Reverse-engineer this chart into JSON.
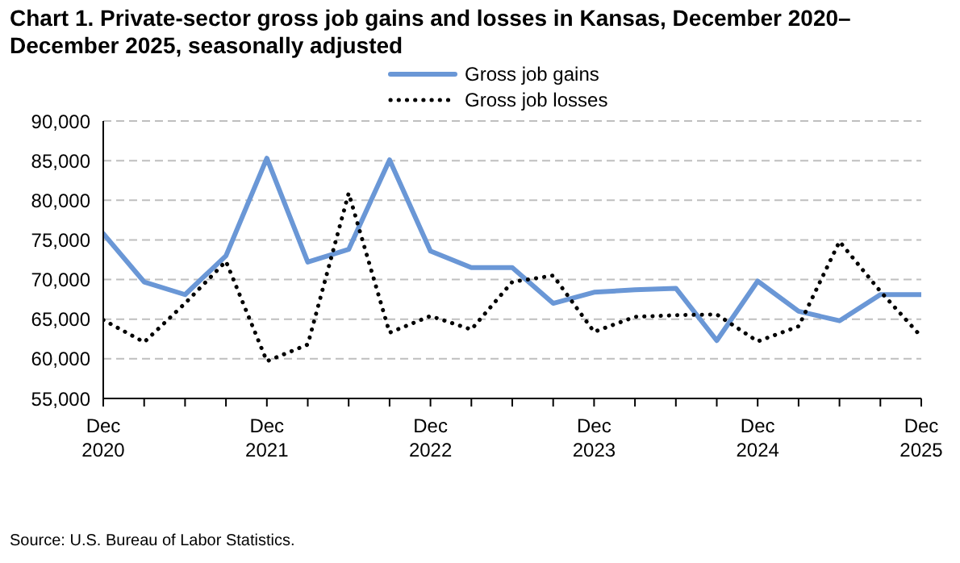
{
  "chart_data": {
    "type": "line",
    "title": "Chart 1. Private-sector gross job gains and losses in Kansas, December 2020–December 2025, seasonally adjusted",
    "categories": [
      "Dec\n2020",
      null,
      null,
      null,
      "Dec\n2021",
      null,
      null,
      null,
      "Dec\n2022",
      null,
      null,
      null,
      "Dec\n2023",
      null,
      null,
      null,
      "Dec\n2024",
      null,
      null,
      null,
      "Dec\n2025"
    ],
    "series": [
      {
        "name": "Gross job gains",
        "color": "#6a97d6",
        "line_style": "solid",
        "values": [
          75800,
          69700,
          68100,
          73000,
          85300,
          72200,
          73800,
          85100,
          73600,
          71500,
          71500,
          67000,
          68400,
          68700,
          68900,
          62300,
          69800,
          66000,
          64800,
          68100,
          68100
        ]
      },
      {
        "name": "Gross job losses",
        "color": "#000000",
        "line_style": "dotted",
        "values": [
          64900,
          62100,
          67000,
          72300,
          59700,
          61800,
          80900,
          63300,
          65400,
          63700,
          69700,
          70500,
          63400,
          65300,
          65500,
          65600,
          62200,
          64100,
          74800,
          68500,
          62800
        ]
      }
    ],
    "ylim": [
      55000,
      90000
    ],
    "yticks": [
      {
        "value": 55000,
        "label": "55,000"
      },
      {
        "value": 60000,
        "label": "60,000"
      },
      {
        "value": 65000,
        "label": "65,000"
      },
      {
        "value": 70000,
        "label": "70,000"
      },
      {
        "value": 75000,
        "label": "75,000"
      },
      {
        "value": 80000,
        "label": "80,000"
      },
      {
        "value": 85000,
        "label": "85,000"
      },
      {
        "value": 90000,
        "label": "90,000"
      }
    ],
    "grid": "y",
    "legend": "top",
    "marker": "none",
    "annotations": [
      "Source: U.S. Bureau of Labor Statistics."
    ]
  }
}
